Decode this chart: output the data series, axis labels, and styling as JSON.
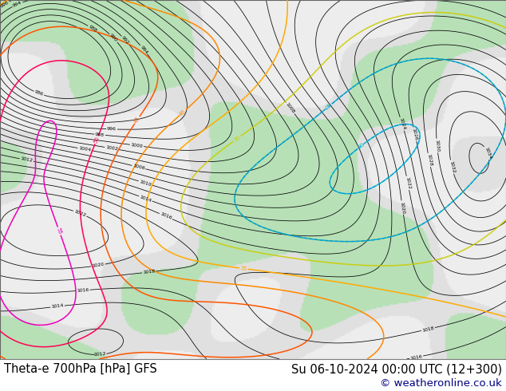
{
  "title_left": "Theta-e 700hPa [hPa] GFS",
  "title_right": "Su 06-10-2024 00:00 UTC (12+300)",
  "copyright": "© weatheronline.co.uk",
  "bg_color": "#ffffff",
  "text_color": "#000000",
  "copyright_color": "#000080",
  "font_size_title": 10.5,
  "font_size_copyright": 9.5,
  "fig_width": 6.34,
  "fig_height": 4.9,
  "dpi": 100,
  "theta_e_colors": {
    "15": "#00ffff",
    "20": "#00cccc",
    "25": "#00aaaa",
    "30": "#cccc00",
    "35": "#ffaa00",
    "40": "#ff8800",
    "45": "#ff4400",
    "50": "#ff0066",
    "55": "#cc00cc"
  },
  "land_color": "#d8d8d8",
  "land_green_color": "#b8e8b8",
  "sea_color": "#f0f0f0",
  "isobar_color": "#000000",
  "isobar_lw": 0.55,
  "theta_lw": 1.1
}
